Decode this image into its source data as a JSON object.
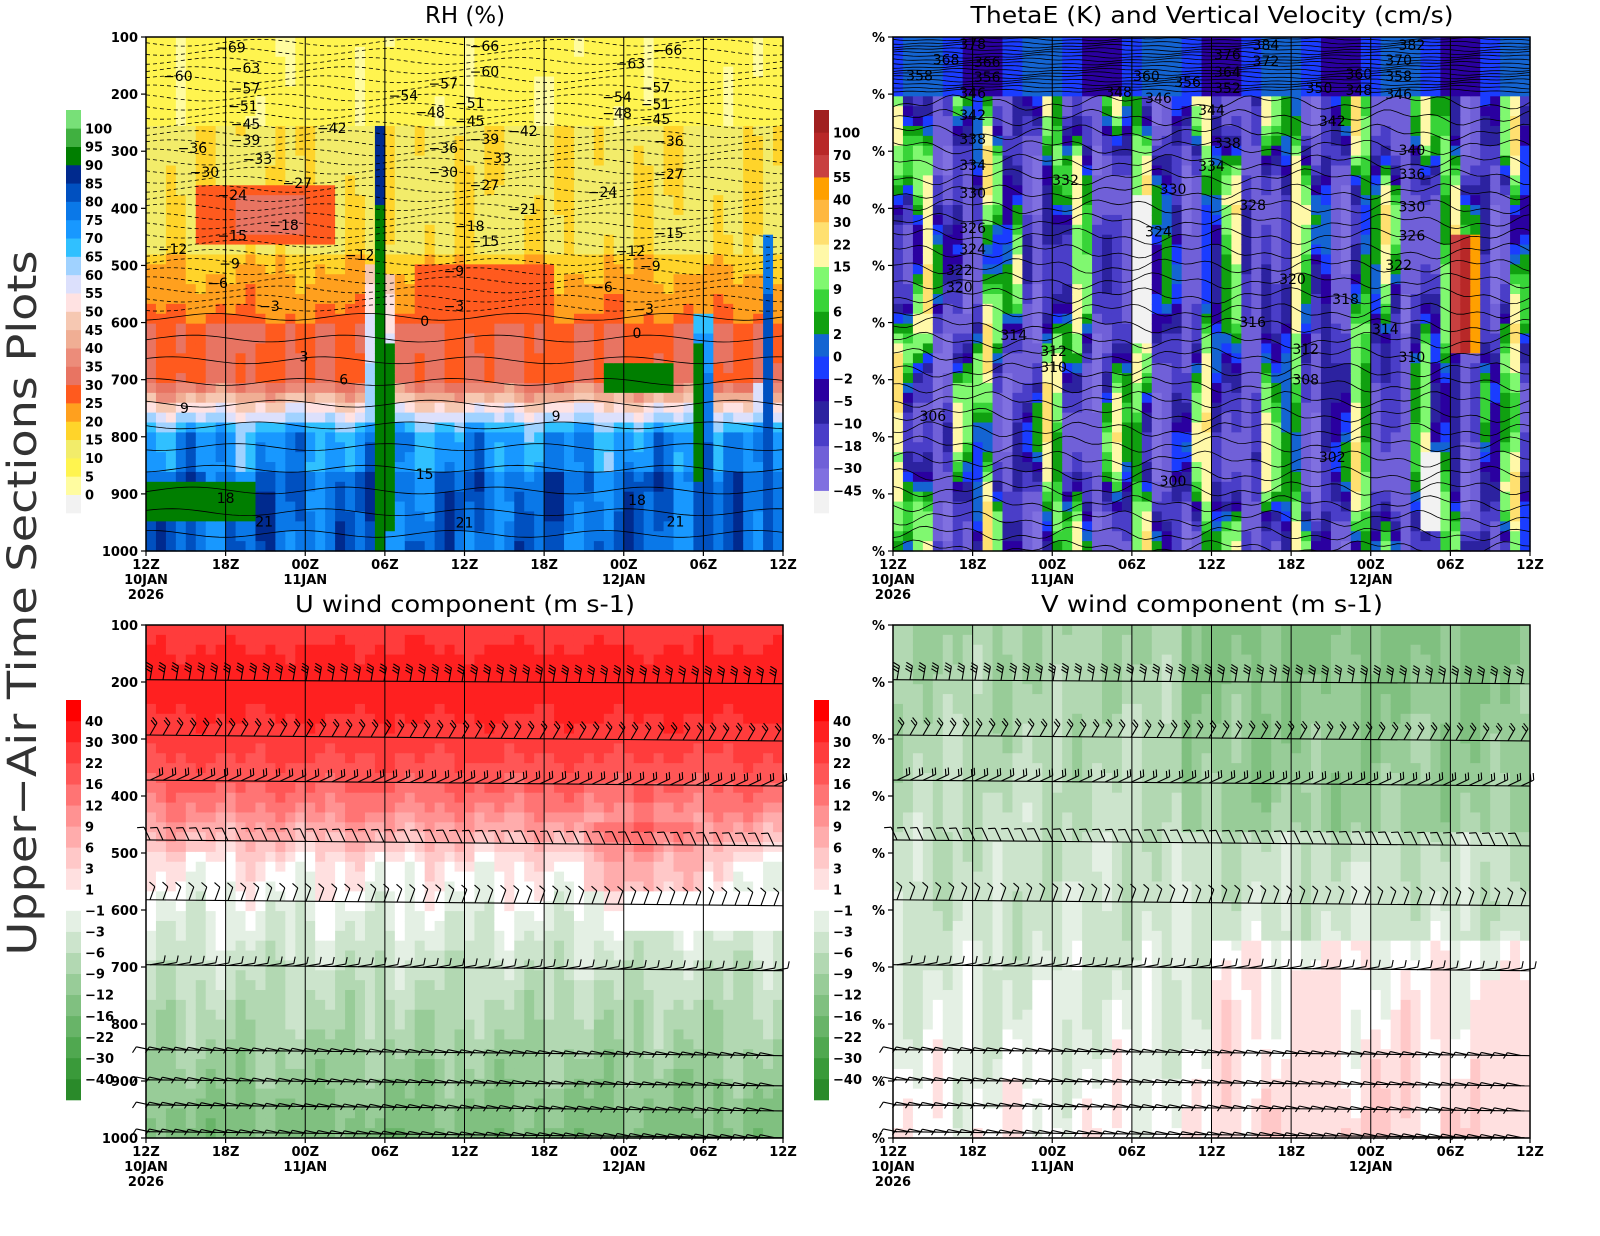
{
  "page": {
    "side_title": "Upper−Air Time Sections Plots"
  },
  "chart_data": [
    {
      "type": "heatmap",
      "title": "RH (%)",
      "xlim_hours": [
        0,
        48
      ],
      "ylim": [
        1000,
        100
      ],
      "x_ticks": [
        "12Z",
        "18Z",
        "00Z",
        "06Z",
        "12Z",
        "18Z",
        "00Z",
        "06Z",
        "12Z"
      ],
      "date_labels": [
        {
          "tick": 0,
          "lines": [
            "10JAN",
            "2026"
          ]
        },
        {
          "tick": 2,
          "lines": [
            "11JAN"
          ]
        },
        {
          "tick": 6,
          "lines": [
            "12JAN"
          ]
        }
      ],
      "y_ticks": [
        "100",
        "200",
        "300",
        "400",
        "500",
        "600",
        "700",
        "800",
        "900",
        "1000"
      ],
      "colorbar": {
        "levels": [
          0,
          5,
          10,
          15,
          20,
          25,
          30,
          35,
          40,
          45,
          50,
          55,
          60,
          65,
          70,
          75,
          80,
          85,
          90,
          95,
          100
        ],
        "colors": [
          "#f2f2f2",
          "#fffca0",
          "#fff44f",
          "#f2ec6a",
          "#ffd42a",
          "#ffa01e",
          "#ff5a1e",
          "#e87462",
          "#ec8c7a",
          "#f0ae94",
          "#f6c8b2",
          "#ffe2e2",
          "#dce0fc",
          "#a0d2ff",
          "#30c0ff",
          "#1898ff",
          "#0a78e8",
          "#0050c0",
          "#002a8e",
          "#007e00",
          "#40b040",
          "#78e078"
        ]
      },
      "contour_labels": [
        {
          "t": 2.4,
          "p": 168,
          "text": "-60"
        },
        {
          "t": 6.4,
          "p": 118,
          "text": "-69"
        },
        {
          "t": 7.5,
          "p": 154,
          "text": "-63"
        },
        {
          "t": 7.5,
          "p": 190,
          "text": "-57"
        },
        {
          "t": 7.3,
          "p": 221,
          "text": "-51"
        },
        {
          "t": 7.5,
          "p": 252,
          "text": "-45"
        },
        {
          "t": 7.5,
          "p": 280,
          "text": "-39"
        },
        {
          "t": 3.5,
          "p": 294,
          "text": "-36"
        },
        {
          "t": 8.4,
          "p": 314,
          "text": "-33"
        },
        {
          "t": 4.4,
          "p": 336,
          "text": "-30"
        },
        {
          "t": 6.5,
          "p": 377,
          "text": "-24"
        },
        {
          "t": 14.0,
          "p": 259,
          "text": "-42"
        },
        {
          "t": 11.4,
          "p": 356,
          "text": "-27"
        },
        {
          "t": 10.4,
          "p": 429,
          "text": "-18"
        },
        {
          "t": 6.5,
          "p": 448,
          "text": "-15"
        },
        {
          "t": 2.0,
          "p": 471,
          "text": "-12"
        },
        {
          "t": 6.3,
          "p": 497,
          "text": "-9"
        },
        {
          "t": 5.4,
          "p": 531,
          "text": "-6"
        },
        {
          "t": 9.3,
          "p": 571,
          "text": "-3"
        },
        {
          "t": 16.1,
          "p": 482,
          "text": "-12"
        },
        {
          "t": 19.4,
          "p": 202,
          "text": "-54"
        },
        {
          "t": 21.4,
          "p": 231,
          "text": "-48"
        },
        {
          "t": 22.4,
          "p": 181,
          "text": "-57"
        },
        {
          "t": 22.4,
          "p": 294,
          "text": "-36"
        },
        {
          "t": 22.4,
          "p": 336,
          "text": "-30"
        },
        {
          "t": 25.5,
          "p": 116,
          "text": "-66"
        },
        {
          "t": 25.5,
          "p": 160,
          "text": "-60"
        },
        {
          "t": 24.4,
          "p": 216,
          "text": "-51"
        },
        {
          "t": 24.4,
          "p": 247,
          "text": "-45"
        },
        {
          "t": 25.5,
          "p": 279,
          "text": "-39"
        },
        {
          "t": 26.4,
          "p": 312,
          "text": "-33"
        },
        {
          "t": 28.4,
          "p": 265,
          "text": "-42"
        },
        {
          "t": 25.5,
          "p": 359,
          "text": "-27"
        },
        {
          "t": 28.4,
          "p": 401,
          "text": "-21"
        },
        {
          "t": 24.4,
          "p": 431,
          "text": "-18"
        },
        {
          "t": 25.5,
          "p": 457,
          "text": "-15"
        },
        {
          "t": 23.2,
          "p": 510,
          "text": "-9"
        },
        {
          "t": 23.2,
          "p": 571,
          "text": "-3"
        },
        {
          "t": 21.0,
          "p": 597,
          "text": "0"
        },
        {
          "t": 11.9,
          "p": 659,
          "text": "3"
        },
        {
          "t": 14.9,
          "p": 700,
          "text": "6"
        },
        {
          "t": 2.9,
          "p": 750,
          "text": "9"
        },
        {
          "t": 30.9,
          "p": 764,
          "text": "9"
        },
        {
          "t": 21.0,
          "p": 865,
          "text": "15"
        },
        {
          "t": 6.0,
          "p": 907,
          "text": "18"
        },
        {
          "t": 8.9,
          "p": 948,
          "text": "21"
        },
        {
          "t": 24.0,
          "p": 950,
          "text": "21"
        },
        {
          "t": 37.0,
          "p": 911,
          "text": "18"
        },
        {
          "t": 39.9,
          "p": 948,
          "text": "21"
        },
        {
          "t": 36.5,
          "p": 146,
          "text": "-63"
        },
        {
          "t": 39.3,
          "p": 123,
          "text": "-66"
        },
        {
          "t": 38.4,
          "p": 188,
          "text": "-57"
        },
        {
          "t": 35.5,
          "p": 205,
          "text": "-54"
        },
        {
          "t": 38.4,
          "p": 217,
          "text": "-51"
        },
        {
          "t": 35.5,
          "p": 233,
          "text": "-48"
        },
        {
          "t": 38.4,
          "p": 244,
          "text": "-45"
        },
        {
          "t": 39.4,
          "p": 282,
          "text": "-36"
        },
        {
          "t": 39.4,
          "p": 340,
          "text": "-27"
        },
        {
          "t": 34.4,
          "p": 371,
          "text": "-24"
        },
        {
          "t": 39.4,
          "p": 443,
          "text": "-15"
        },
        {
          "t": 36.5,
          "p": 475,
          "text": "-12"
        },
        {
          "t": 38.0,
          "p": 501,
          "text": "-9"
        },
        {
          "t": 34.4,
          "p": 538,
          "text": "-6"
        },
        {
          "t": 37.5,
          "p": 576,
          "text": "-3"
        },
        {
          "t": 37.0,
          "p": 618,
          "text": "0"
        }
      ]
    },
    {
      "type": "heatmap",
      "title": "ThetaE (K) and Vertical Velocity (cm/s)",
      "xlim_hours": [
        0,
        48
      ],
      "ylim": [
        1000,
        100
      ],
      "x_ticks": [
        "12Z",
        "18Z",
        "00Z",
        "06Z",
        "12Z",
        "18Z",
        "00Z",
        "06Z",
        "12Z"
      ],
      "date_labels": [
        {
          "tick": 0,
          "lines": [
            "10JAN",
            "2026"
          ]
        },
        {
          "tick": 2,
          "lines": [
            "11JAN"
          ]
        },
        {
          "tick": 6,
          "lines": [
            "12JAN"
          ]
        }
      ],
      "y_ticks": [
        "%",
        "%",
        "%",
        "%",
        "%",
        "%",
        "%",
        "%",
        "%",
        "%"
      ],
      "colorbar": {
        "levels": [
          -45,
          -30,
          -18,
          -10,
          -5,
          -2,
          0,
          2,
          6,
          9,
          15,
          22,
          30,
          40,
          55,
          70,
          100
        ],
        "colors": [
          "#f2f2f2",
          "#8070e0",
          "#7060d8",
          "#4a3ec8",
          "#2c22a0",
          "#2a00a0",
          "#1a3cff",
          "#1464d2",
          "#10a010",
          "#38d438",
          "#80f870",
          "#fff8a8",
          "#ffe070",
          "#ffb840",
          "#ffa000",
          "#c84040",
          "#b82828",
          "#a02020"
        ]
      },
      "contour_labels": [
        {
          "t": 6.0,
          "p": 112,
          "text": "378"
        },
        {
          "t": 4.0,
          "p": 139,
          "text": "368"
        },
        {
          "t": 7.1,
          "p": 144,
          "text": "366"
        },
        {
          "t": 2.0,
          "p": 167,
          "text": "358"
        },
        {
          "t": 7.1,
          "p": 170,
          "text": "356"
        },
        {
          "t": 6.0,
          "p": 198,
          "text": "346"
        },
        {
          "t": 6.0,
          "p": 237,
          "text": "342"
        },
        {
          "t": 6.0,
          "p": 279,
          "text": "338"
        },
        {
          "t": 6.0,
          "p": 324,
          "text": "334"
        },
        {
          "t": 6.0,
          "p": 373,
          "text": "330"
        },
        {
          "t": 6.0,
          "p": 434,
          "text": "326"
        },
        {
          "t": 6.0,
          "p": 471,
          "text": "324"
        },
        {
          "t": 5.0,
          "p": 508,
          "text": "322"
        },
        {
          "t": 5.0,
          "p": 538,
          "text": "320"
        },
        {
          "t": 9.1,
          "p": 622,
          "text": "314"
        },
        {
          "t": 12.1,
          "p": 650,
          "text": "312"
        },
        {
          "t": 12.1,
          "p": 678,
          "text": "310"
        },
        {
          "t": 3.0,
          "p": 764,
          "text": "306"
        },
        {
          "t": 13.0,
          "p": 350,
          "text": "332"
        },
        {
          "t": 17.0,
          "p": 196,
          "text": "348"
        },
        {
          "t": 19.1,
          "p": 168,
          "text": "360"
        },
        {
          "t": 20.0,
          "p": 207,
          "text": "346"
        },
        {
          "t": 22.2,
          "p": 179,
          "text": "356"
        },
        {
          "t": 25.2,
          "p": 131,
          "text": "376"
        },
        {
          "t": 25.2,
          "p": 161,
          "text": "364"
        },
        {
          "t": 25.2,
          "p": 189,
          "text": "352"
        },
        {
          "t": 28.1,
          "p": 114,
          "text": "384"
        },
        {
          "t": 28.1,
          "p": 142,
          "text": "372"
        },
        {
          "t": 24.0,
          "p": 228,
          "text": "344"
        },
        {
          "t": 21.1,
          "p": 366,
          "text": "330"
        },
        {
          "t": 25.2,
          "p": 286,
          "text": "338"
        },
        {
          "t": 24.0,
          "p": 326,
          "text": "334"
        },
        {
          "t": 27.1,
          "p": 394,
          "text": "328"
        },
        {
          "t": 20.0,
          "p": 441,
          "text": "324"
        },
        {
          "t": 27.1,
          "p": 599,
          "text": "316"
        },
        {
          "t": 30.1,
          "p": 524,
          "text": "320"
        },
        {
          "t": 34.1,
          "p": 559,
          "text": "318"
        },
        {
          "t": 31.1,
          "p": 646,
          "text": "312"
        },
        {
          "t": 31.1,
          "p": 700,
          "text": "308"
        },
        {
          "t": 33.1,
          "p": 835,
          "text": "302"
        },
        {
          "t": 21.1,
          "p": 877,
          "text": "300"
        },
        {
          "t": 33.1,
          "p": 247,
          "text": "342"
        },
        {
          "t": 32.1,
          "p": 189,
          "text": "350"
        },
        {
          "t": 35.1,
          "p": 193,
          "text": "348"
        },
        {
          "t": 38.1,
          "p": 200,
          "text": "346"
        },
        {
          "t": 35.1,
          "p": 165,
          "text": "360"
        },
        {
          "t": 38.1,
          "p": 168,
          "text": "358"
        },
        {
          "t": 38.1,
          "p": 140,
          "text": "370"
        },
        {
          "t": 39.1,
          "p": 114,
          "text": "382"
        },
        {
          "t": 39.1,
          "p": 298,
          "text": "340"
        },
        {
          "t": 39.1,
          "p": 340,
          "text": "336"
        },
        {
          "t": 39.1,
          "p": 397,
          "text": "330"
        },
        {
          "t": 39.1,
          "p": 448,
          "text": "326"
        },
        {
          "t": 38.1,
          "p": 499,
          "text": "322"
        },
        {
          "t": 37.1,
          "p": 611,
          "text": "314"
        },
        {
          "t": 39.1,
          "p": 660,
          "text": "310"
        }
      ]
    },
    {
      "type": "heatmap",
      "title": "U wind component (m s-1)",
      "xlim_hours": [
        0,
        48
      ],
      "ylim": [
        1000,
        100
      ],
      "x_ticks": [
        "12Z",
        "18Z",
        "00Z",
        "06Z",
        "12Z",
        "18Z",
        "00Z",
        "06Z",
        "12Z"
      ],
      "date_labels": [
        {
          "tick": 0,
          "lines": [
            "10JAN",
            "2026"
          ]
        },
        {
          "tick": 2,
          "lines": [
            "11JAN"
          ]
        },
        {
          "tick": 6,
          "lines": [
            "12JAN"
          ]
        }
      ],
      "y_ticks": [
        "100",
        "200",
        "300",
        "400",
        "500",
        "600",
        "700",
        "800",
        "900",
        "1000"
      ],
      "colorbar": {
        "levels": [
          -40,
          -30,
          -22,
          -16,
          -12,
          -9,
          -6,
          -3,
          -1,
          1,
          3,
          6,
          9,
          12,
          16,
          22,
          30,
          40
        ],
        "colors": [
          "#2a8a2a",
          "#3a9a3a",
          "#50a850",
          "#68b468",
          "#80c080",
          "#98cc98",
          "#b2d8b2",
          "#cce4cc",
          "#e4f0e4",
          "#ffffff",
          "#ffe0e0",
          "#ffc8c8",
          "#ffacac",
          "#ff9292",
          "#ff7474",
          "#ff5656",
          "#ff3c3c",
          "#ff2020",
          "#ff0000"
        ]
      },
      "barb_levels_hpa": [
        196,
        293,
        372,
        477,
        582,
        696,
        845,
        898,
        942,
        989
      ],
      "contour_labels": []
    },
    {
      "type": "heatmap",
      "title": "V wind component (m s-1)",
      "xlim_hours": [
        0,
        48
      ],
      "ylim": [
        1000,
        100
      ],
      "x_ticks": [
        "12Z",
        "18Z",
        "00Z",
        "06Z",
        "12Z",
        "18Z",
        "00Z",
        "06Z",
        "12Z"
      ],
      "date_labels": [
        {
          "tick": 0,
          "lines": [
            "10JAN",
            "2026"
          ]
        },
        {
          "tick": 2,
          "lines": [
            "11JAN"
          ]
        },
        {
          "tick": 6,
          "lines": [
            "12JAN"
          ]
        }
      ],
      "y_ticks": [
        "%",
        "%",
        "%",
        "%",
        "%",
        "%",
        "%",
        "%",
        "%",
        "%"
      ],
      "colorbar": {
        "levels": [
          -40,
          -30,
          -22,
          -16,
          -12,
          -9,
          -6,
          -3,
          -1,
          1,
          3,
          6,
          9,
          12,
          16,
          22,
          30,
          40
        ],
        "colors": [
          "#2a8a2a",
          "#3a9a3a",
          "#50a850",
          "#68b468",
          "#80c080",
          "#98cc98",
          "#b2d8b2",
          "#cce4cc",
          "#e4f0e4",
          "#ffffff",
          "#ffe0e0",
          "#ffc8c8",
          "#ffacac",
          "#ff9292",
          "#ff7474",
          "#ff5656",
          "#ff3c3c",
          "#ff2020",
          "#ff0000"
        ]
      },
      "barb_levels_hpa": [
        196,
        293,
        372,
        477,
        582,
        696,
        845,
        898,
        942,
        989
      ],
      "contour_labels": []
    }
  ]
}
